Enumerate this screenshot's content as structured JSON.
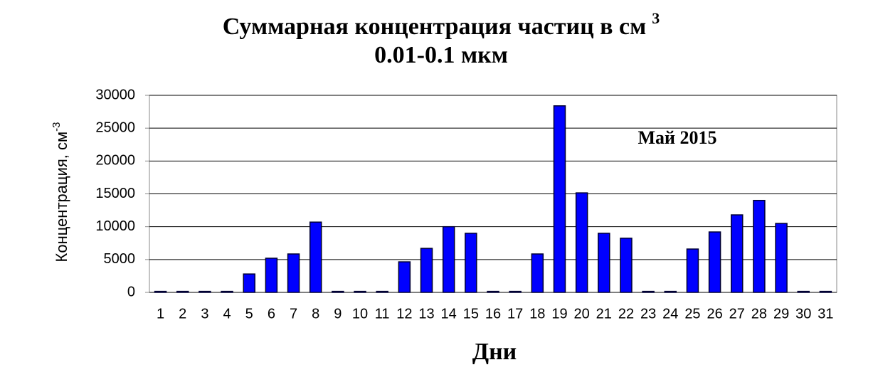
{
  "chart_data": {
    "type": "bar",
    "title": "Суммарная концентрация частиц  в см",
    "title_superscript": "3",
    "subtitle": "0.01-0.1 мкм",
    "annotation": "Май 2015",
    "xlabel": "Дни",
    "ylabel": "Концентрация,  см",
    "ylabel_superscript": "-3",
    "categories": [
      "1",
      "2",
      "3",
      "4",
      "5",
      "6",
      "7",
      "8",
      "9",
      "10",
      "11",
      "12",
      "13",
      "14",
      "15",
      "16",
      "17",
      "18",
      "19",
      "20",
      "21",
      "22",
      "23",
      "24",
      "25",
      "26",
      "27",
      "28",
      "29",
      "30",
      "31"
    ],
    "values": [
      150,
      150,
      150,
      150,
      2800,
      5200,
      5850,
      10700,
      150,
      150,
      150,
      4650,
      6700,
      10000,
      9000,
      150,
      150,
      5850,
      28400,
      15150,
      9000,
      8250,
      150,
      150,
      6600,
      9200,
      11800,
      14000,
      10500,
      150,
      150
    ],
    "color": "#0000ff",
    "ylim": [
      0,
      30000
    ],
    "yticks": [
      0,
      5000,
      10000,
      15000,
      20000,
      25000,
      30000
    ],
    "grid": true
  }
}
